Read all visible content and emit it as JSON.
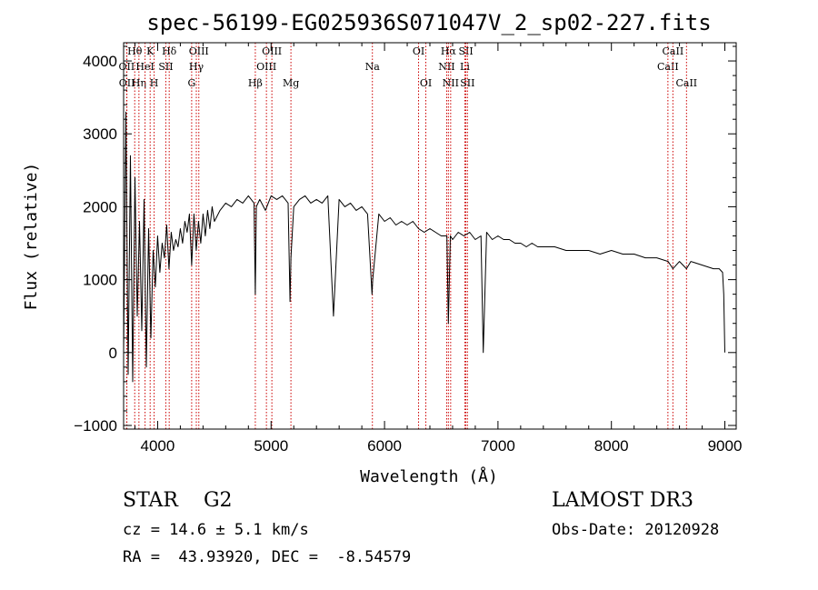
{
  "chart_data": {
    "type": "line",
    "title": "spec-56199-EG025936S071047V_2_sp02-227.fits",
    "xlabel": "Wavelength (Å)",
    "ylabel": "Flux (relative)",
    "xlim": [
      3700,
      9100
    ],
    "ylim": [
      -1050,
      4250
    ],
    "xticks": [
      4000,
      5000,
      6000,
      7000,
      8000,
      9000
    ],
    "yticks": [
      -1000,
      0,
      1000,
      2000,
      3000,
      4000
    ],
    "ytick_labels": [
      "−1000",
      "0",
      "1000",
      "2000",
      "3000",
      "4000"
    ],
    "grid": false,
    "series": [
      {
        "name": "flux",
        "x": [
          3700,
          3720,
          3740,
          3760,
          3780,
          3800,
          3820,
          3840,
          3860,
          3880,
          3900,
          3920,
          3940,
          3960,
          3980,
          4000,
          4020,
          4040,
          4060,
          4080,
          4100,
          4120,
          4140,
          4160,
          4180,
          4200,
          4220,
          4240,
          4260,
          4280,
          4300,
          4320,
          4340,
          4360,
          4380,
          4400,
          4420,
          4440,
          4460,
          4480,
          4500,
          4550,
          4600,
          4650,
          4700,
          4750,
          4800,
          4850,
          4861,
          4870,
          4900,
          4950,
          5000,
          5050,
          5100,
          5150,
          5167,
          5175,
          5200,
          5250,
          5300,
          5350,
          5400,
          5450,
          5500,
          5550,
          5600,
          5650,
          5700,
          5750,
          5800,
          5850,
          5890,
          5896,
          5950,
          6000,
          6050,
          6100,
          6150,
          6200,
          6250,
          6300,
          6350,
          6400,
          6450,
          6500,
          6550,
          6563,
          6580,
          6600,
          6650,
          6700,
          6750,
          6800,
          6850,
          6870,
          6900,
          6950,
          7000,
          7050,
          7100,
          7150,
          7200,
          7250,
          7300,
          7350,
          7400,
          7500,
          7600,
          7700,
          7800,
          7900,
          8000,
          8100,
          8200,
          8300,
          8400,
          8500,
          8542,
          8600,
          8662,
          8700,
          8800,
          8900,
          8950,
          8980,
          8990,
          9000
        ],
        "y": [
          0,
          3300,
          -300,
          2700,
          -400,
          2400,
          500,
          1800,
          300,
          2100,
          -200,
          1700,
          200,
          1400,
          900,
          1600,
          1100,
          1500,
          1300,
          1750,
          1150,
          1650,
          1400,
          1550,
          1450,
          1700,
          1500,
          1800,
          1650,
          1900,
          1200,
          1900,
          1400,
          1800,
          1500,
          1900,
          1600,
          1950,
          1700,
          2000,
          1800,
          1950,
          2050,
          2000,
          2100,
          2050,
          2150,
          2050,
          800,
          2000,
          2100,
          1950,
          2150,
          2100,
          2150,
          2050,
          700,
          1300,
          2000,
          2100,
          2150,
          2050,
          2100,
          2050,
          2150,
          500,
          2100,
          2000,
          2050,
          1950,
          2000,
          1900,
          800,
          1000,
          1900,
          1800,
          1850,
          1750,
          1800,
          1750,
          1800,
          1700,
          1650,
          1700,
          1650,
          1600,
          1600,
          400,
          1600,
          1550,
          1650,
          1600,
          1650,
          1550,
          1600,
          0,
          1650,
          1550,
          1600,
          1550,
          1550,
          1500,
          1500,
          1450,
          1500,
          1450,
          1450,
          1450,
          1400,
          1400,
          1400,
          1350,
          1400,
          1350,
          1350,
          1300,
          1300,
          1250,
          1150,
          1250,
          1150,
          1250,
          1200,
          1150,
          1150,
          1100,
          800,
          0
        ]
      }
    ],
    "line_markers": [
      {
        "label": "OII",
        "wavelength": 3727,
        "row": 1
      },
      {
        "label": "OII",
        "wavelength": 3729,
        "row": 2
      },
      {
        "label": "Hθ",
        "wavelength": 3798,
        "row": 0
      },
      {
        "label": "Hη",
        "wavelength": 3835,
        "row": 2
      },
      {
        "label": "HeI",
        "wavelength": 3889,
        "row": 1
      },
      {
        "label": "K",
        "wavelength": 3934,
        "row": 0
      },
      {
        "label": "H",
        "wavelength": 3969,
        "row": 2
      },
      {
        "label": "SII",
        "wavelength": 4072,
        "row": 1
      },
      {
        "label": "Hδ",
        "wavelength": 4102,
        "row": 0
      },
      {
        "label": "G",
        "wavelength": 4300,
        "row": 2
      },
      {
        "label": "Hγ",
        "wavelength": 4341,
        "row": 1
      },
      {
        "label": "OIII",
        "wavelength": 4363,
        "row": 0
      },
      {
        "label": "Hβ",
        "wavelength": 4861,
        "row": 2
      },
      {
        "label": "OIII",
        "wavelength": 4959,
        "row": 1
      },
      {
        "label": "OIII",
        "wavelength": 5007,
        "row": 0
      },
      {
        "label": "Mg",
        "wavelength": 5175,
        "row": 2
      },
      {
        "label": "Na",
        "wavelength": 5893,
        "row": 1
      },
      {
        "label": "OI",
        "wavelength": 6300,
        "row": 0
      },
      {
        "label": "OI",
        "wavelength": 6364,
        "row": 2
      },
      {
        "label": "NII",
        "wavelength": 6548,
        "row": 1
      },
      {
        "label": "Hα",
        "wavelength": 6563,
        "row": 0
      },
      {
        "label": "NII",
        "wavelength": 6583,
        "row": 2
      },
      {
        "label": "Li",
        "wavelength": 6708,
        "row": 1
      },
      {
        "label": "SII",
        "wavelength": 6717,
        "row": 0
      },
      {
        "label": "SII",
        "wavelength": 6731,
        "row": 2
      },
      {
        "label": "CaII",
        "wavelength": 8498,
        "row": 1
      },
      {
        "label": "CaII",
        "wavelength": 8542,
        "row": 0
      },
      {
        "label": "CaII",
        "wavelength": 8662,
        "row": 2
      }
    ]
  },
  "info": {
    "classification": "STAR    G2",
    "survey": "LAMOST DR3",
    "redshift": "cz = 14.6 ± 5.1 km/s",
    "obs_date": "Obs-Date: 20120928",
    "coords": "RA =  43.93920, DEC =  -8.54579"
  },
  "colors": {
    "marker_line": "#cc0000",
    "spectrum": "#000000",
    "axes": "#000000"
  }
}
